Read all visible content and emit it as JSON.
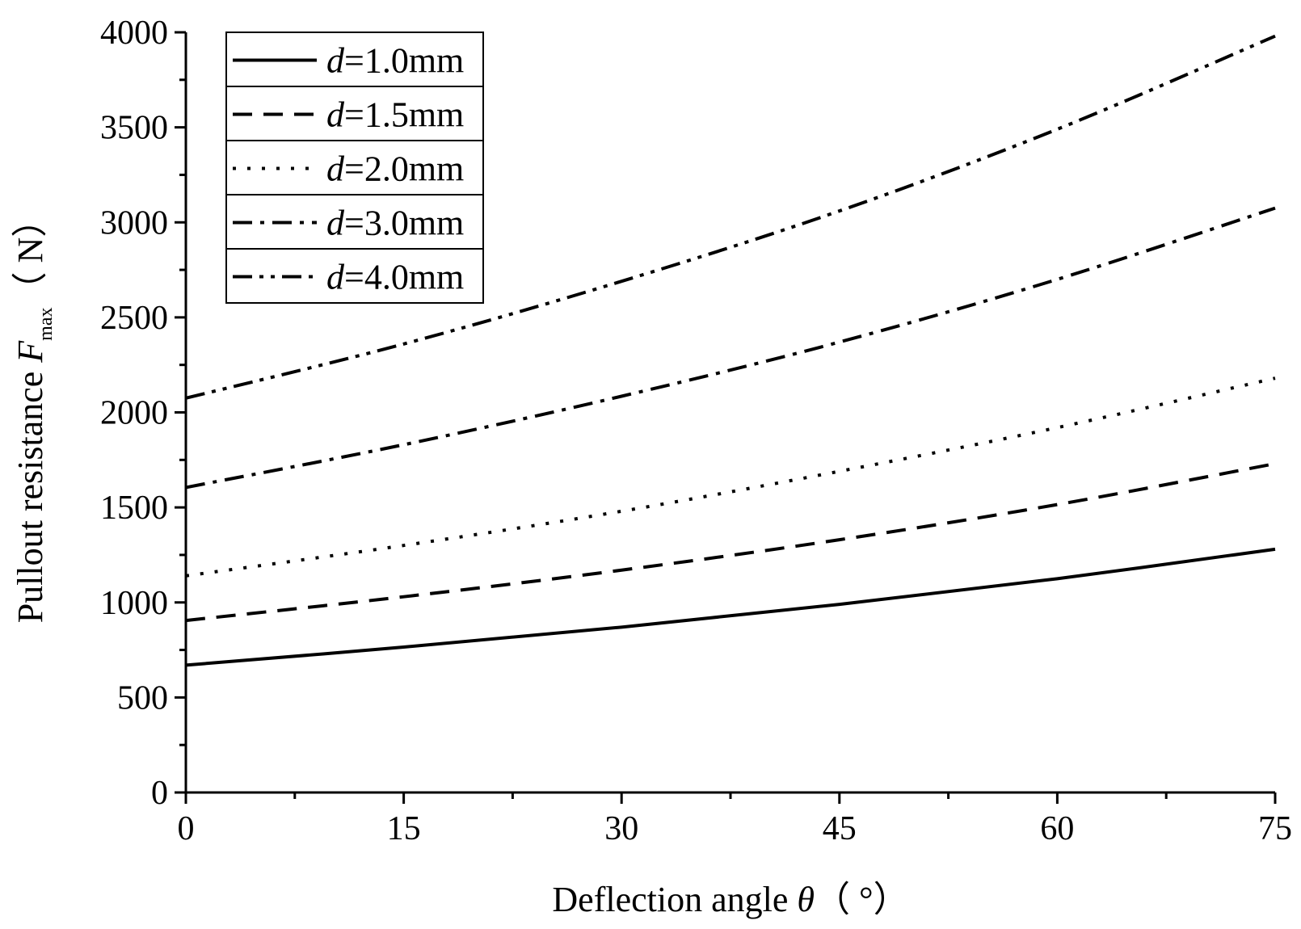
{
  "chart_data": {
    "type": "line",
    "xlabel": "Deflection angle",
    "xlabel_symbol": "θ",
    "xlabel_unit": "（ °）",
    "ylabel": "Pullout resistance",
    "ylabel_symbol": "F",
    "ylabel_subscript": "max",
    "ylabel_unit": "（ N）",
    "xlim": [
      0,
      75
    ],
    "ylim": [
      0,
      4000
    ],
    "xticks": [
      0,
      15,
      30,
      45,
      60,
      75
    ],
    "yticks": [
      0,
      500,
      1000,
      1500,
      2000,
      2500,
      3000,
      3500,
      4000
    ],
    "grid": false,
    "legend_position": "top-left",
    "series": [
      {
        "name": "d=1.0mm",
        "prefix": "d",
        "suffix": "=1.0mm",
        "style": "solid",
        "x": [
          0,
          15,
          30,
          45,
          60,
          75
        ],
        "values": [
          670,
          765,
          870,
          990,
          1125,
          1280
        ]
      },
      {
        "name": "d=1.5mm",
        "prefix": "d",
        "suffix": "=1.5mm",
        "style": "dash",
        "x": [
          0,
          15,
          30,
          45,
          60,
          75
        ],
        "values": [
          905,
          1030,
          1170,
          1330,
          1515,
          1730
        ]
      },
      {
        "name": "d=2.0mm",
        "prefix": "d",
        "suffix": "=2.0mm",
        "style": "dot",
        "x": [
          0,
          15,
          30,
          45,
          60,
          75
        ],
        "values": [
          1140,
          1300,
          1480,
          1690,
          1920,
          2180
        ]
      },
      {
        "name": "d=3.0mm",
        "prefix": "d",
        "suffix": "=3.0mm",
        "style": "dashdot",
        "x": [
          0,
          15,
          30,
          45,
          60,
          75
        ],
        "values": [
          1605,
          1830,
          2085,
          2370,
          2700,
          3075
        ]
      },
      {
        "name": "d=4.0mm",
        "prefix": "d",
        "suffix": "=4.0mm",
        "style": "dashdotdot",
        "x": [
          0,
          15,
          30,
          45,
          60,
          75
        ],
        "values": [
          2075,
          2360,
          2690,
          3060,
          3490,
          3980
        ]
      }
    ]
  }
}
